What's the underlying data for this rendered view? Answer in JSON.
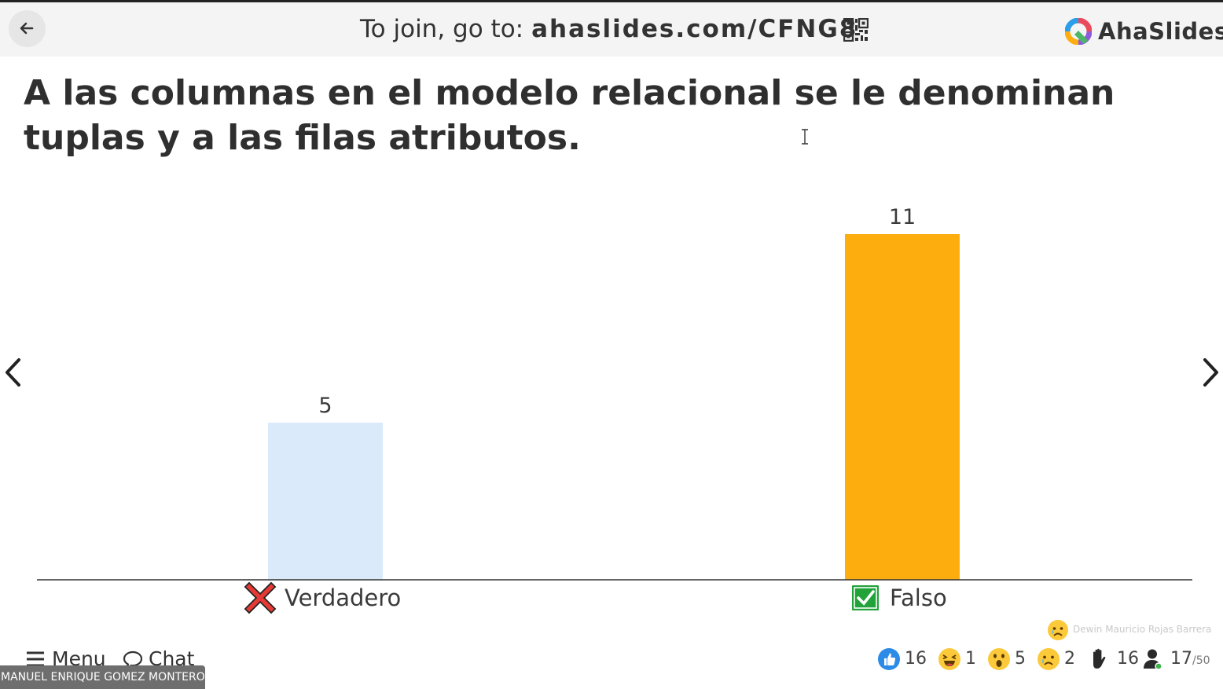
{
  "header": {
    "join_prefix": "To join, go to:",
    "join_url": "ahaslides.com/CFNG8",
    "logo_text": "AhaSlides"
  },
  "question": {
    "text": "A las columnas en el modelo relacional se le denominan tuplas y a las filas atributos."
  },
  "chart_data": {
    "type": "bar",
    "categories": [
      "Verdadero",
      "Falso"
    ],
    "values": [
      5,
      11
    ],
    "colors": [
      "#dbeafa",
      "#fdae0e"
    ],
    "correct": [
      false,
      true
    ],
    "ylim": [
      0,
      11
    ]
  },
  "reaction": {
    "user_name": "Dewin Mauricio Rojas Barrera",
    "icon": "sad-emoji-icon"
  },
  "footer": {
    "menu_label": "Menu",
    "chat_label": "Chat"
  },
  "stats": {
    "likes": "16",
    "laughs": "1",
    "wows": "5",
    "sads": "2",
    "hands": "16",
    "participants": "17",
    "participants_max": "/50"
  },
  "participant_name_tag": "MANUEL ENRIQUE GOMEZ MONTERO",
  "colors": {
    "accent": "#fdae0e",
    "wrong": "#e53935",
    "correct": "#22a33a",
    "like": "#2b8be6"
  }
}
